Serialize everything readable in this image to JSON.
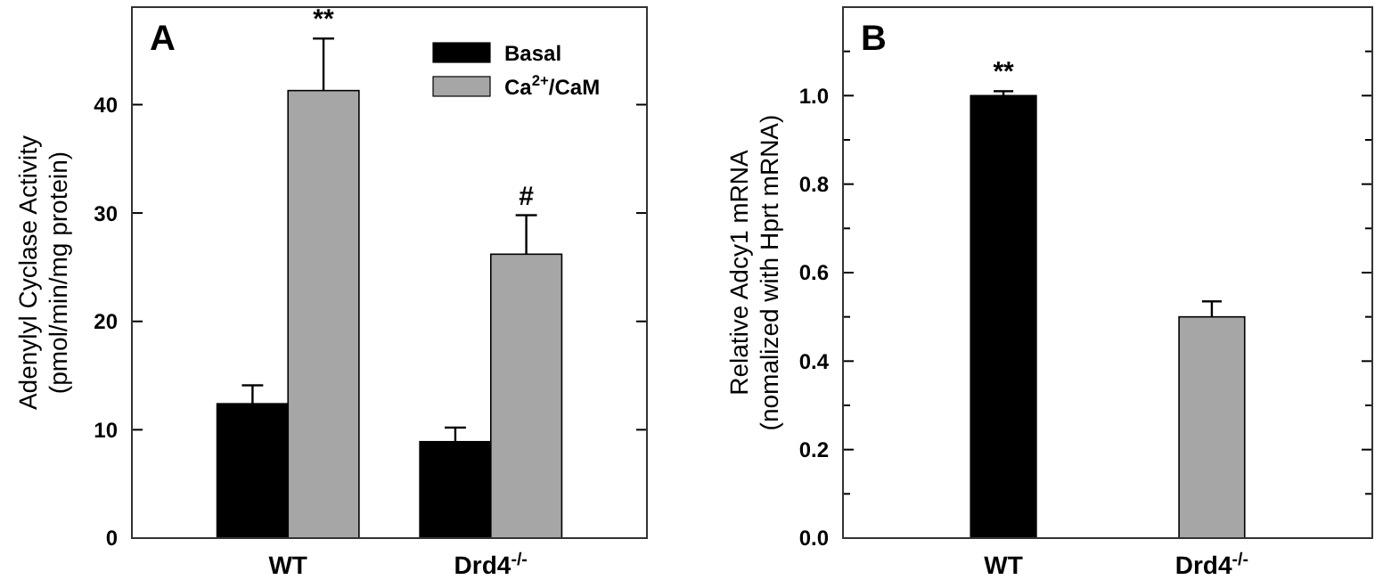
{
  "chart_data": [
    {
      "type": "bar",
      "title": "A",
      "ylabel": "Adenylyl Cyclase Activity\n(pmol/min/mg protein)",
      "categories": [
        "WT",
        "Drd4$^{-/-}$"
      ],
      "series": [
        {
          "name": "Basal",
          "color": "#000000",
          "values": [
            12.4,
            8.9
          ],
          "errors": [
            [
              12.4,
              14.1
            ],
            [
              8.9,
              10.2
            ]
          ]
        },
        {
          "name": "Ca$^{2+}$/CaM",
          "color": "#a6a6a6",
          "values": [
            41.3,
            26.2
          ],
          "errors": [
            [
              41.3,
              46.1
            ],
            [
              26.2,
              29.8
            ]
          ]
        }
      ],
      "ylim": [
        0,
        49
      ],
      "yticks": [
        0,
        10,
        20,
        30,
        40
      ],
      "legend": "top right",
      "annotations": [
        "**",
        "#"
      ]
    },
    {
      "type": "bar",
      "title": "B",
      "ylabel": "Relative Adcy1 mRNA\n(nomalized with Hprt mRNA)",
      "categories": [
        "WT",
        "Drd4$^{-/-}$"
      ],
      "values": [
        1.0,
        0.5
      ],
      "colors": [
        "#000000",
        "#a6a6a6"
      ],
      "errors": [
        [
          1.0,
          1.01
        ],
        [
          0.5,
          0.535
        ]
      ],
      "ylim": [
        0,
        1.2
      ],
      "yticks": [
        {
          "value": 0,
          "label": "0.0"
        },
        {
          "value": 0.1,
          "label": null
        },
        {
          "value": 0.2,
          "label": "0.2"
        },
        {
          "value": 0.3,
          "label": null
        },
        {
          "value": 0.4,
          "label": "0.4"
        },
        {
          "value": 0.5,
          "label": null
        },
        {
          "value": 0.6,
          "label": "0.6"
        },
        {
          "value": 0.7,
          "label": null
        },
        {
          "value": 0.8,
          "label": "0.8"
        },
        {
          "value": 0.9,
          "label": null
        },
        {
          "value": 1.0,
          "label": "1.0"
        },
        {
          "value": 1.1,
          "label": null
        }
      ],
      "annotations": [
        "**"
      ]
    }
  ]
}
